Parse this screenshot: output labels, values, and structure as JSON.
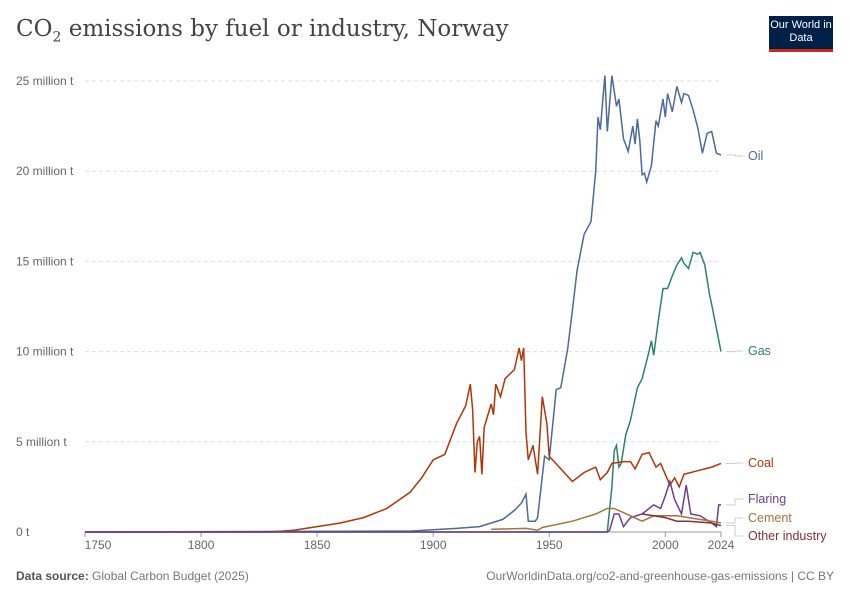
{
  "header": {
    "title_main": "CO",
    "title_sub": "2",
    "title_rest": " emissions by fuel or industry, Norway",
    "logo": "Our World in Data"
  },
  "footer": {
    "source_label": "Data source:",
    "source": "Global Carbon Budget (2025)",
    "url": "OurWorldinData.org/co2-and-greenhouse-gas-emissions | CC BY"
  },
  "chart_data": {
    "type": "line",
    "title": "CO₂ emissions by fuel or industry, Norway",
    "xlim": [
      1750,
      2024
    ],
    "ylim": [
      0,
      25
    ],
    "x_ticks": [
      {
        "v": 1750,
        "l": "1750"
      },
      {
        "v": 1800,
        "l": "1800"
      },
      {
        "v": 1850,
        "l": "1850"
      },
      {
        "v": 1900,
        "l": "1900"
      },
      {
        "v": 1950,
        "l": "1950"
      },
      {
        "v": 2000,
        "l": "2000"
      },
      {
        "v": 2024,
        "l": "2024"
      }
    ],
    "y_ticks": [
      {
        "v": 0,
        "l": "0 t"
      },
      {
        "v": 5,
        "l": "5 million t"
      },
      {
        "v": 10,
        "l": "10 million t"
      },
      {
        "v": 15,
        "l": "15 million t"
      },
      {
        "v": 20,
        "l": "20 million t"
      },
      {
        "v": 25,
        "l": "25 million t"
      }
    ],
    "grid": true,
    "series": [
      {
        "name": "Oil",
        "color": "#4c6a9c",
        "label_value": 20.9,
        "points": [
          [
            1750,
            0
          ],
          [
            1890,
            0.05
          ],
          [
            1910,
            0.2
          ],
          [
            1920,
            0.3
          ],
          [
            1930,
            0.7
          ],
          [
            1935,
            1.2
          ],
          [
            1938,
            1.6
          ],
          [
            1940,
            2.1
          ],
          [
            1941,
            0.6
          ],
          [
            1944,
            0.6
          ],
          [
            1945,
            0.8
          ],
          [
            1948,
            4.2
          ],
          [
            1950,
            4.0
          ],
          [
            1953,
            7.9
          ],
          [
            1955,
            8.0
          ],
          [
            1958,
            10.2
          ],
          [
            1960,
            12.3
          ],
          [
            1962,
            14.5
          ],
          [
            1965,
            16.5
          ],
          [
            1968,
            17.2
          ],
          [
            1970,
            20
          ],
          [
            1971,
            23
          ],
          [
            1972,
            22.3
          ],
          [
            1973,
            23.8
          ],
          [
            1974,
            25.3
          ],
          [
            1975,
            22.2
          ],
          [
            1977,
            25.3
          ],
          [
            1979,
            23.6
          ],
          [
            1980,
            24.0
          ],
          [
            1982,
            21.8
          ],
          [
            1984,
            21.1
          ],
          [
            1986,
            22.5
          ],
          [
            1987,
            21.5
          ],
          [
            1988,
            22.9
          ],
          [
            1989,
            21.7
          ],
          [
            1990,
            19.8
          ],
          [
            1991,
            19.9
          ],
          [
            1992,
            19.4
          ],
          [
            1994,
            20.3
          ],
          [
            1996,
            22.8
          ],
          [
            1997,
            22.5
          ],
          [
            1999,
            24.0
          ],
          [
            2000,
            23
          ],
          [
            2001,
            24.3
          ],
          [
            2003,
            23.3
          ],
          [
            2005,
            24.7
          ],
          [
            2007,
            23.8
          ],
          [
            2008,
            24.3
          ],
          [
            2010,
            24.2
          ],
          [
            2012,
            23.4
          ],
          [
            2014,
            22.4
          ],
          [
            2016,
            21.0
          ],
          [
            2018,
            22.1
          ],
          [
            2020,
            22.2
          ],
          [
            2022,
            21.0
          ],
          [
            2024,
            20.9
          ]
        ]
      },
      {
        "name": "Gas",
        "color": "#2c8465",
        "label_value": 10.0,
        "points": [
          [
            1750,
            0
          ],
          [
            1975,
            0
          ],
          [
            1977,
            2.5
          ],
          [
            1978,
            4.5
          ],
          [
            1979,
            4.8
          ],
          [
            1980,
            3.6
          ],
          [
            1981,
            3.8
          ],
          [
            1983,
            5.4
          ],
          [
            1985,
            6.2
          ],
          [
            1988,
            8.0
          ],
          [
            1990,
            8.5
          ],
          [
            1993,
            10.0
          ],
          [
            1994,
            10.6
          ],
          [
            1995,
            9.8
          ],
          [
            1997,
            11.7
          ],
          [
            1999,
            13.5
          ],
          [
            2001,
            13.5
          ],
          [
            2003,
            14.2
          ],
          [
            2005,
            14.8
          ],
          [
            2007,
            15.2
          ],
          [
            2008,
            14.9
          ],
          [
            2010,
            14.6
          ],
          [
            2012,
            15.5
          ],
          [
            2014,
            15.4
          ],
          [
            2015,
            15.5
          ],
          [
            2017,
            14.8
          ],
          [
            2019,
            13.2
          ],
          [
            2020,
            12.6
          ],
          [
            2024,
            10.0
          ]
        ]
      },
      {
        "name": "Coal",
        "color": "#b13507",
        "label_value": 3.8,
        "points": [
          [
            1750,
            0
          ],
          [
            1830,
            0
          ],
          [
            1840,
            0.1
          ],
          [
            1850,
            0.3
          ],
          [
            1860,
            0.5
          ],
          [
            1870,
            0.8
          ],
          [
            1880,
            1.3
          ],
          [
            1890,
            2.2
          ],
          [
            1895,
            3
          ],
          [
            1900,
            4.0
          ],
          [
            1905,
            4.3
          ],
          [
            1910,
            6
          ],
          [
            1914,
            7
          ],
          [
            1916,
            8.2
          ],
          [
            1917,
            6.8
          ],
          [
            1918,
            3.3
          ],
          [
            1919,
            5
          ],
          [
            1920,
            5.3
          ],
          [
            1921,
            3.2
          ],
          [
            1922,
            5.8
          ],
          [
            1925,
            7.1
          ],
          [
            1926,
            6.5
          ],
          [
            1927,
            8.2
          ],
          [
            1929,
            7.5
          ],
          [
            1931,
            8.5
          ],
          [
            1935,
            9
          ],
          [
            1937,
            10.2
          ],
          [
            1938,
            9.5
          ],
          [
            1939,
            10.2
          ],
          [
            1940,
            5.5
          ],
          [
            1941,
            4
          ],
          [
            1943,
            4.8
          ],
          [
            1945,
            3.2
          ],
          [
            1947,
            7.5
          ],
          [
            1949,
            6
          ],
          [
            1950,
            4.2
          ],
          [
            1955,
            3.5
          ],
          [
            1960,
            2.8
          ],
          [
            1965,
            3.3
          ],
          [
            1970,
            3.6
          ],
          [
            1972,
            2.9
          ],
          [
            1975,
            3.3
          ],
          [
            1977,
            3.8
          ],
          [
            1982,
            3.9
          ],
          [
            1985,
            3.9
          ],
          [
            1987,
            3.5
          ],
          [
            1990,
            4.3
          ],
          [
            1993,
            4.4
          ],
          [
            1996,
            3.6
          ],
          [
            1998,
            3.8
          ],
          [
            2002,
            2.6
          ],
          [
            2004,
            3
          ],
          [
            2006,
            2.5
          ],
          [
            2008,
            3.2
          ],
          [
            2014,
            3.4
          ],
          [
            2020,
            3.6
          ],
          [
            2024,
            3.8
          ]
        ]
      },
      {
        "name": "Flaring",
        "color": "#6d3e91",
        "label_value": 1.5,
        "points": [
          [
            1750,
            0
          ],
          [
            1975,
            0
          ],
          [
            1976,
            0.1
          ],
          [
            1978,
            1.0
          ],
          [
            1980,
            1.0
          ],
          [
            1982,
            0.3
          ],
          [
            1985,
            0.8
          ],
          [
            1990,
            1.0
          ],
          [
            1995,
            1.5
          ],
          [
            1998,
            1.3
          ],
          [
            2000,
            2.0
          ],
          [
            2002,
            2.8
          ],
          [
            2004,
            1.8
          ],
          [
            2007,
            1.0
          ],
          [
            2009,
            2.6
          ],
          [
            2011,
            1.0
          ],
          [
            2015,
            0.9
          ],
          [
            2020,
            0.5
          ],
          [
            2022,
            0.3
          ],
          [
            2023,
            1.5
          ],
          [
            2024,
            1.5
          ]
        ]
      },
      {
        "name": "Cement",
        "color": "#a2753c",
        "label_value": 0.5,
        "points": [
          [
            1925,
            0.15
          ],
          [
            1940,
            0.2
          ],
          [
            1945,
            0.1
          ],
          [
            1947,
            0.25
          ],
          [
            1960,
            0.6
          ],
          [
            1970,
            1.0
          ],
          [
            1975,
            1.3
          ],
          [
            1978,
            1.3
          ],
          [
            1985,
            0.9
          ],
          [
            1990,
            0.6
          ],
          [
            1995,
            0.9
          ],
          [
            2005,
            0.9
          ],
          [
            2010,
            0.8
          ],
          [
            2020,
            0.6
          ],
          [
            2024,
            0.5
          ]
        ]
      },
      {
        "name": "Other industry",
        "color": "#883039",
        "label_value": 0.35,
        "points": [
          [
            1990,
            1.0
          ],
          [
            1995,
            0.9
          ],
          [
            2000,
            0.8
          ],
          [
            2005,
            0.6
          ],
          [
            2010,
            0.6
          ],
          [
            2020,
            0.5
          ],
          [
            2024,
            0.35
          ]
        ]
      }
    ]
  }
}
